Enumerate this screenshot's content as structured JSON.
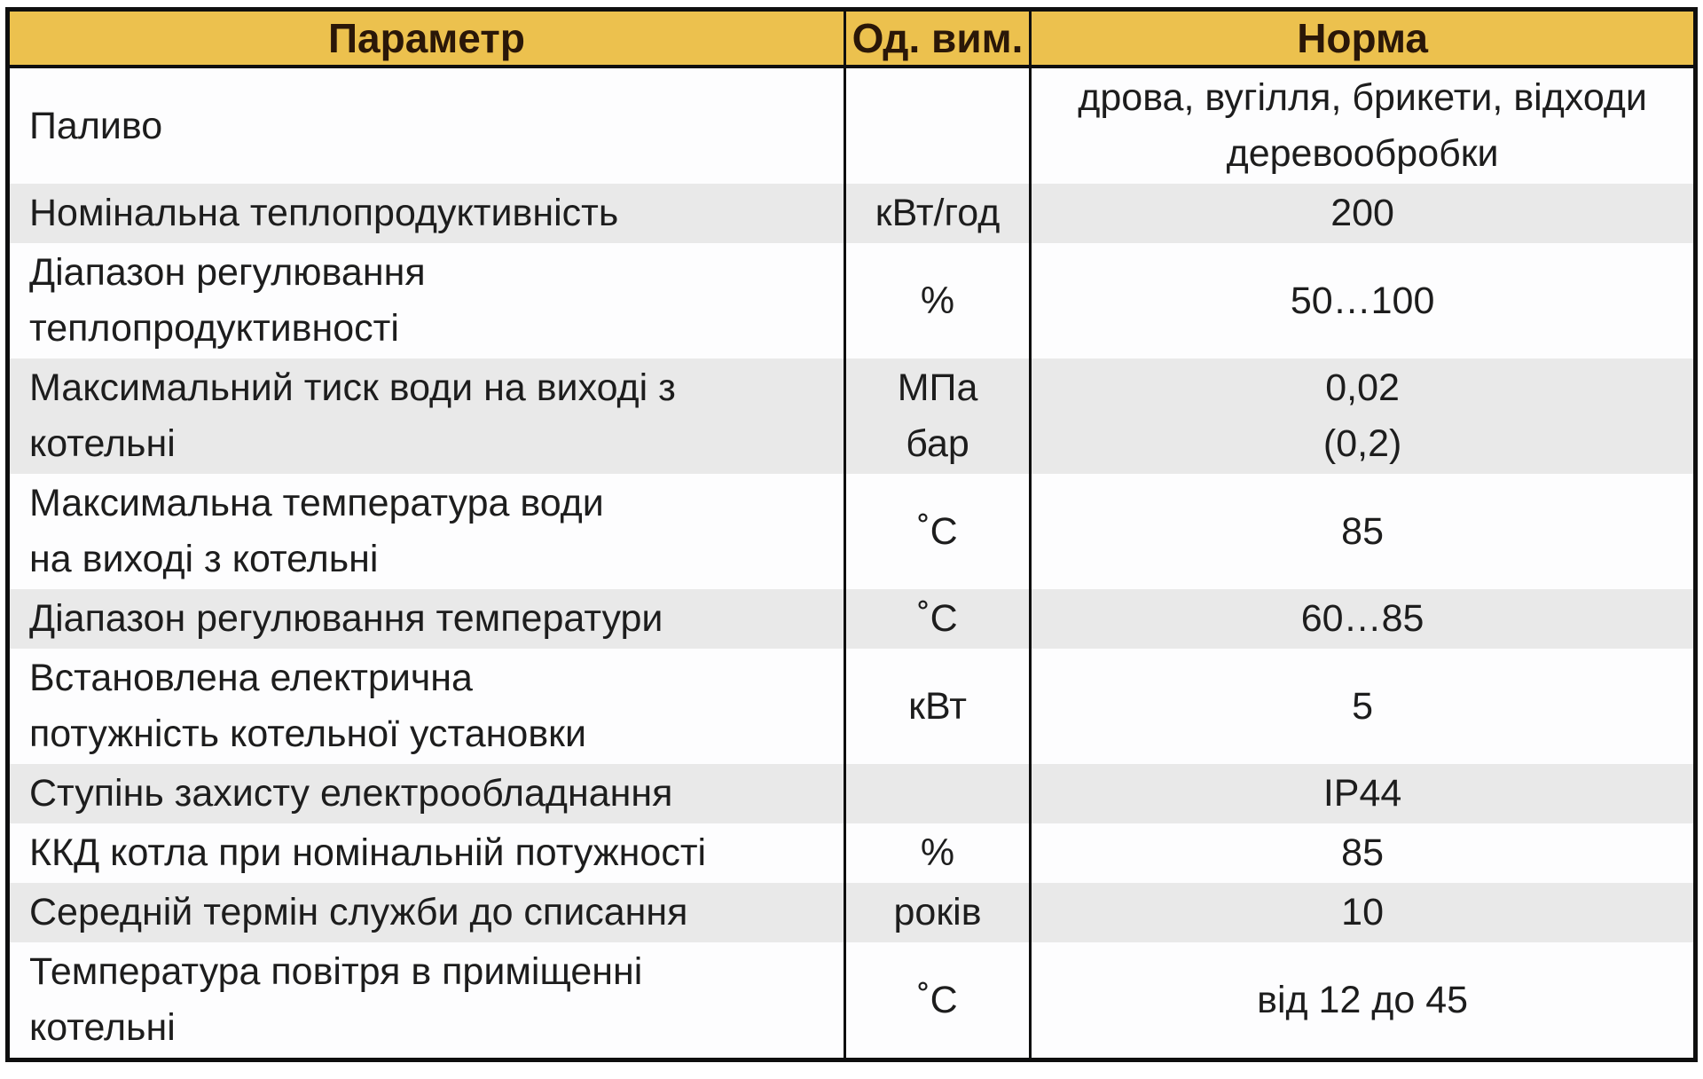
{
  "header": {
    "param": "Параметр",
    "unit": "Од. вим.",
    "norm": "Норма"
  },
  "rows": [
    {
      "param": "Паливо",
      "unit": "",
      "value": "дрова, вугілля, брикети, відходи\nдеревообробки"
    },
    {
      "param": "Номінальна теплопродуктивність",
      "unit": "кВт/год",
      "value": "200"
    },
    {
      "param": "Діапазон регулювання\nтеплопродуктивності",
      "unit": "%",
      "value": "50…100"
    },
    {
      "param": "Максимальний тиск води на виході з\nкотельні",
      "unit": "МПа\nбар",
      "value": "0,02\n(0,2)"
    },
    {
      "param": "Максимальна температура води\nна виході з котельні",
      "unit": "˚С",
      "value": "85"
    },
    {
      "param": "Діапазон регулювання температури",
      "unit": "˚С",
      "value": "60…85"
    },
    {
      "param": "Встановлена електрична\nпотужність котельної установки",
      "unit": "кВт",
      "value": "5"
    },
    {
      "param": "Ступінь захисту електрообладнання",
      "unit": "",
      "value": "IP44"
    },
    {
      "param": "ККД котла при номінальній потужності",
      "unit": "%",
      "value": "85"
    },
    {
      "param": "Середній термін служби до списання",
      "unit": "років",
      "value": "10"
    },
    {
      "param": "Температура повітря в приміщенні\nкотельні",
      "unit": "˚С",
      "value": "від 12 до 45"
    }
  ],
  "colors": {
    "header_bg": "#ecc14e",
    "header_text": "#2a1708",
    "row_bg": "#fdfdfe",
    "row_alt_bg": "#e9e9e9",
    "border": "#0f0f0f",
    "text": "#1d1d1d"
  }
}
